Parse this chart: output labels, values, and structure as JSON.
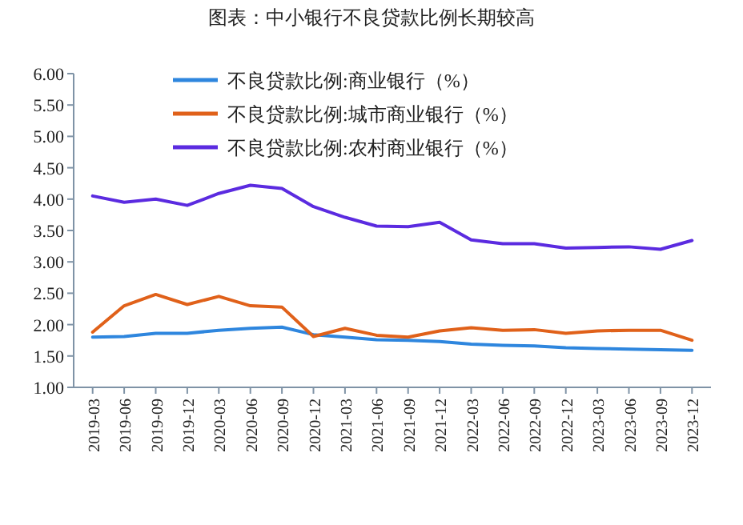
{
  "chart_data": {
    "type": "line",
    "title": "图表：中小银行不良贷款比例长期较高",
    "categories": [
      "2019-03",
      "2019-06",
      "2019-09",
      "2019-12",
      "2020-03",
      "2020-06",
      "2020-09",
      "2020-12",
      "2021-03",
      "2021-06",
      "2021-09",
      "2021-12",
      "2022-03",
      "2022-06",
      "2022-09",
      "2022-12",
      "2023-03",
      "2023-06",
      "2023-09",
      "2023-12"
    ],
    "series": [
      {
        "name": "不良贷款比例:商业银行（%）",
        "color": "#2e86de",
        "values": [
          1.8,
          1.81,
          1.86,
          1.86,
          1.91,
          1.94,
          1.96,
          1.84,
          1.8,
          1.76,
          1.75,
          1.73,
          1.69,
          1.67,
          1.66,
          1.63,
          1.62,
          1.61,
          1.6,
          1.59
        ]
      },
      {
        "name": "不良贷款比例:城市商业银行（%）",
        "color": "#e0611a",
        "values": [
          1.88,
          2.3,
          2.48,
          2.32,
          2.45,
          2.3,
          2.28,
          1.81,
          1.94,
          1.83,
          1.8,
          1.9,
          1.95,
          1.91,
          1.92,
          1.86,
          1.9,
          1.91,
          1.91,
          1.75
        ]
      },
      {
        "name": "不良贷款比例:农村商业银行（%）",
        "color": "#5b2be0",
        "values": [
          4.05,
          3.95,
          4.0,
          3.9,
          4.09,
          4.22,
          4.17,
          3.88,
          3.71,
          3.57,
          3.56,
          3.63,
          3.35,
          3.29,
          3.29,
          3.22,
          3.23,
          3.24,
          3.2,
          3.34
        ]
      }
    ],
    "ylim": [
      1,
      6
    ],
    "yticks": [
      {
        "value": 1,
        "label": "1.00"
      },
      {
        "value": 1.5,
        "label": "1.50"
      },
      {
        "value": 2,
        "label": "2.00"
      },
      {
        "value": 2.5,
        "label": "2.50"
      },
      {
        "value": 3,
        "label": "3.00"
      },
      {
        "value": 3.5,
        "label": "3.50"
      },
      {
        "value": 4,
        "label": "4.00"
      },
      {
        "value": 4.5,
        "label": "4.50"
      },
      {
        "value": 5,
        "label": "5.00"
      },
      {
        "value": 5.5,
        "label": "5.50"
      },
      {
        "value": 6,
        "label": "6.00"
      }
    ],
    "legend": "top"
  }
}
